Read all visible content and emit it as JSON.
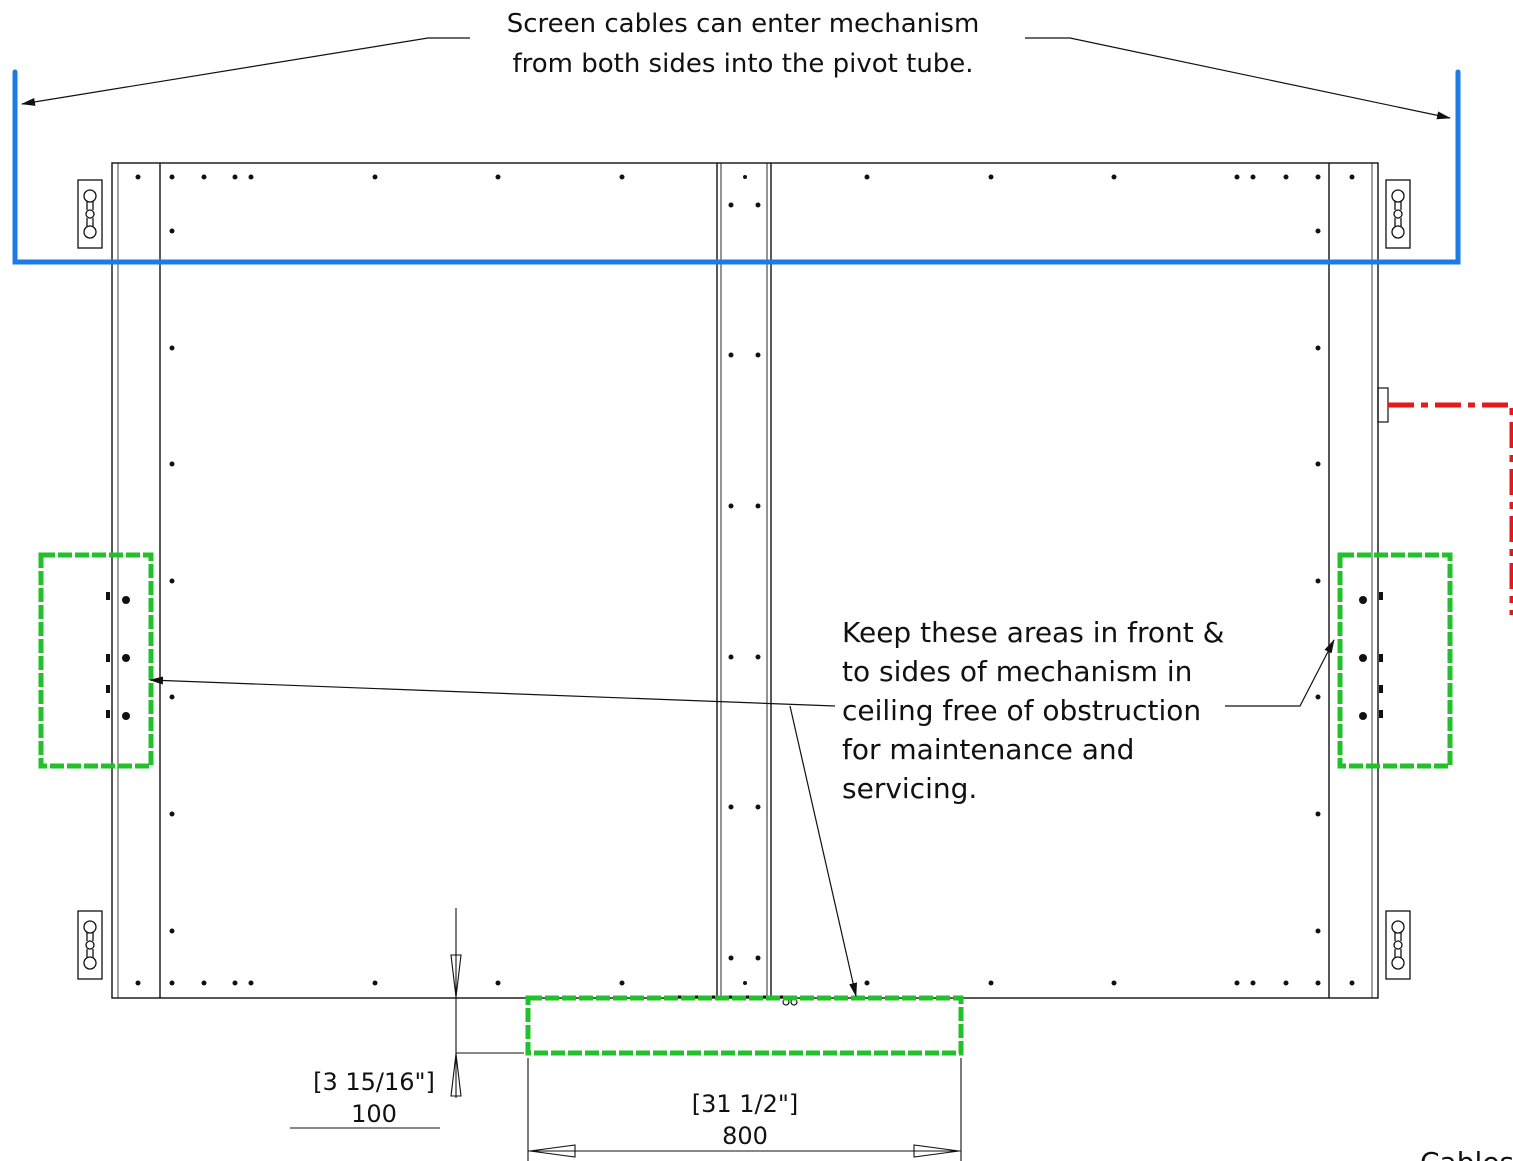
{
  "notes": {
    "top_line1": "Screen cables can enter mechanism",
    "top_line2": "from both sides into the pivot tube.",
    "keep_line1": "Keep these areas in front &",
    "keep_line2": "to sides of mechanism in",
    "keep_line3": "ceiling free of obstruction",
    "keep_line4": "for maintenance and",
    "keep_line5": "servicing.",
    "cables_partial": "Cables"
  },
  "dimensions": {
    "depth_imperial": "[3 15/16\"]",
    "depth_metric": "100",
    "width_imperial": "[31 1/2\"]",
    "width_metric": "800"
  },
  "colors": {
    "cable_path": "#1e7be6",
    "clearance_zone": "#22c02a",
    "red_cable": "#e41a1a",
    "line": "#111111"
  }
}
